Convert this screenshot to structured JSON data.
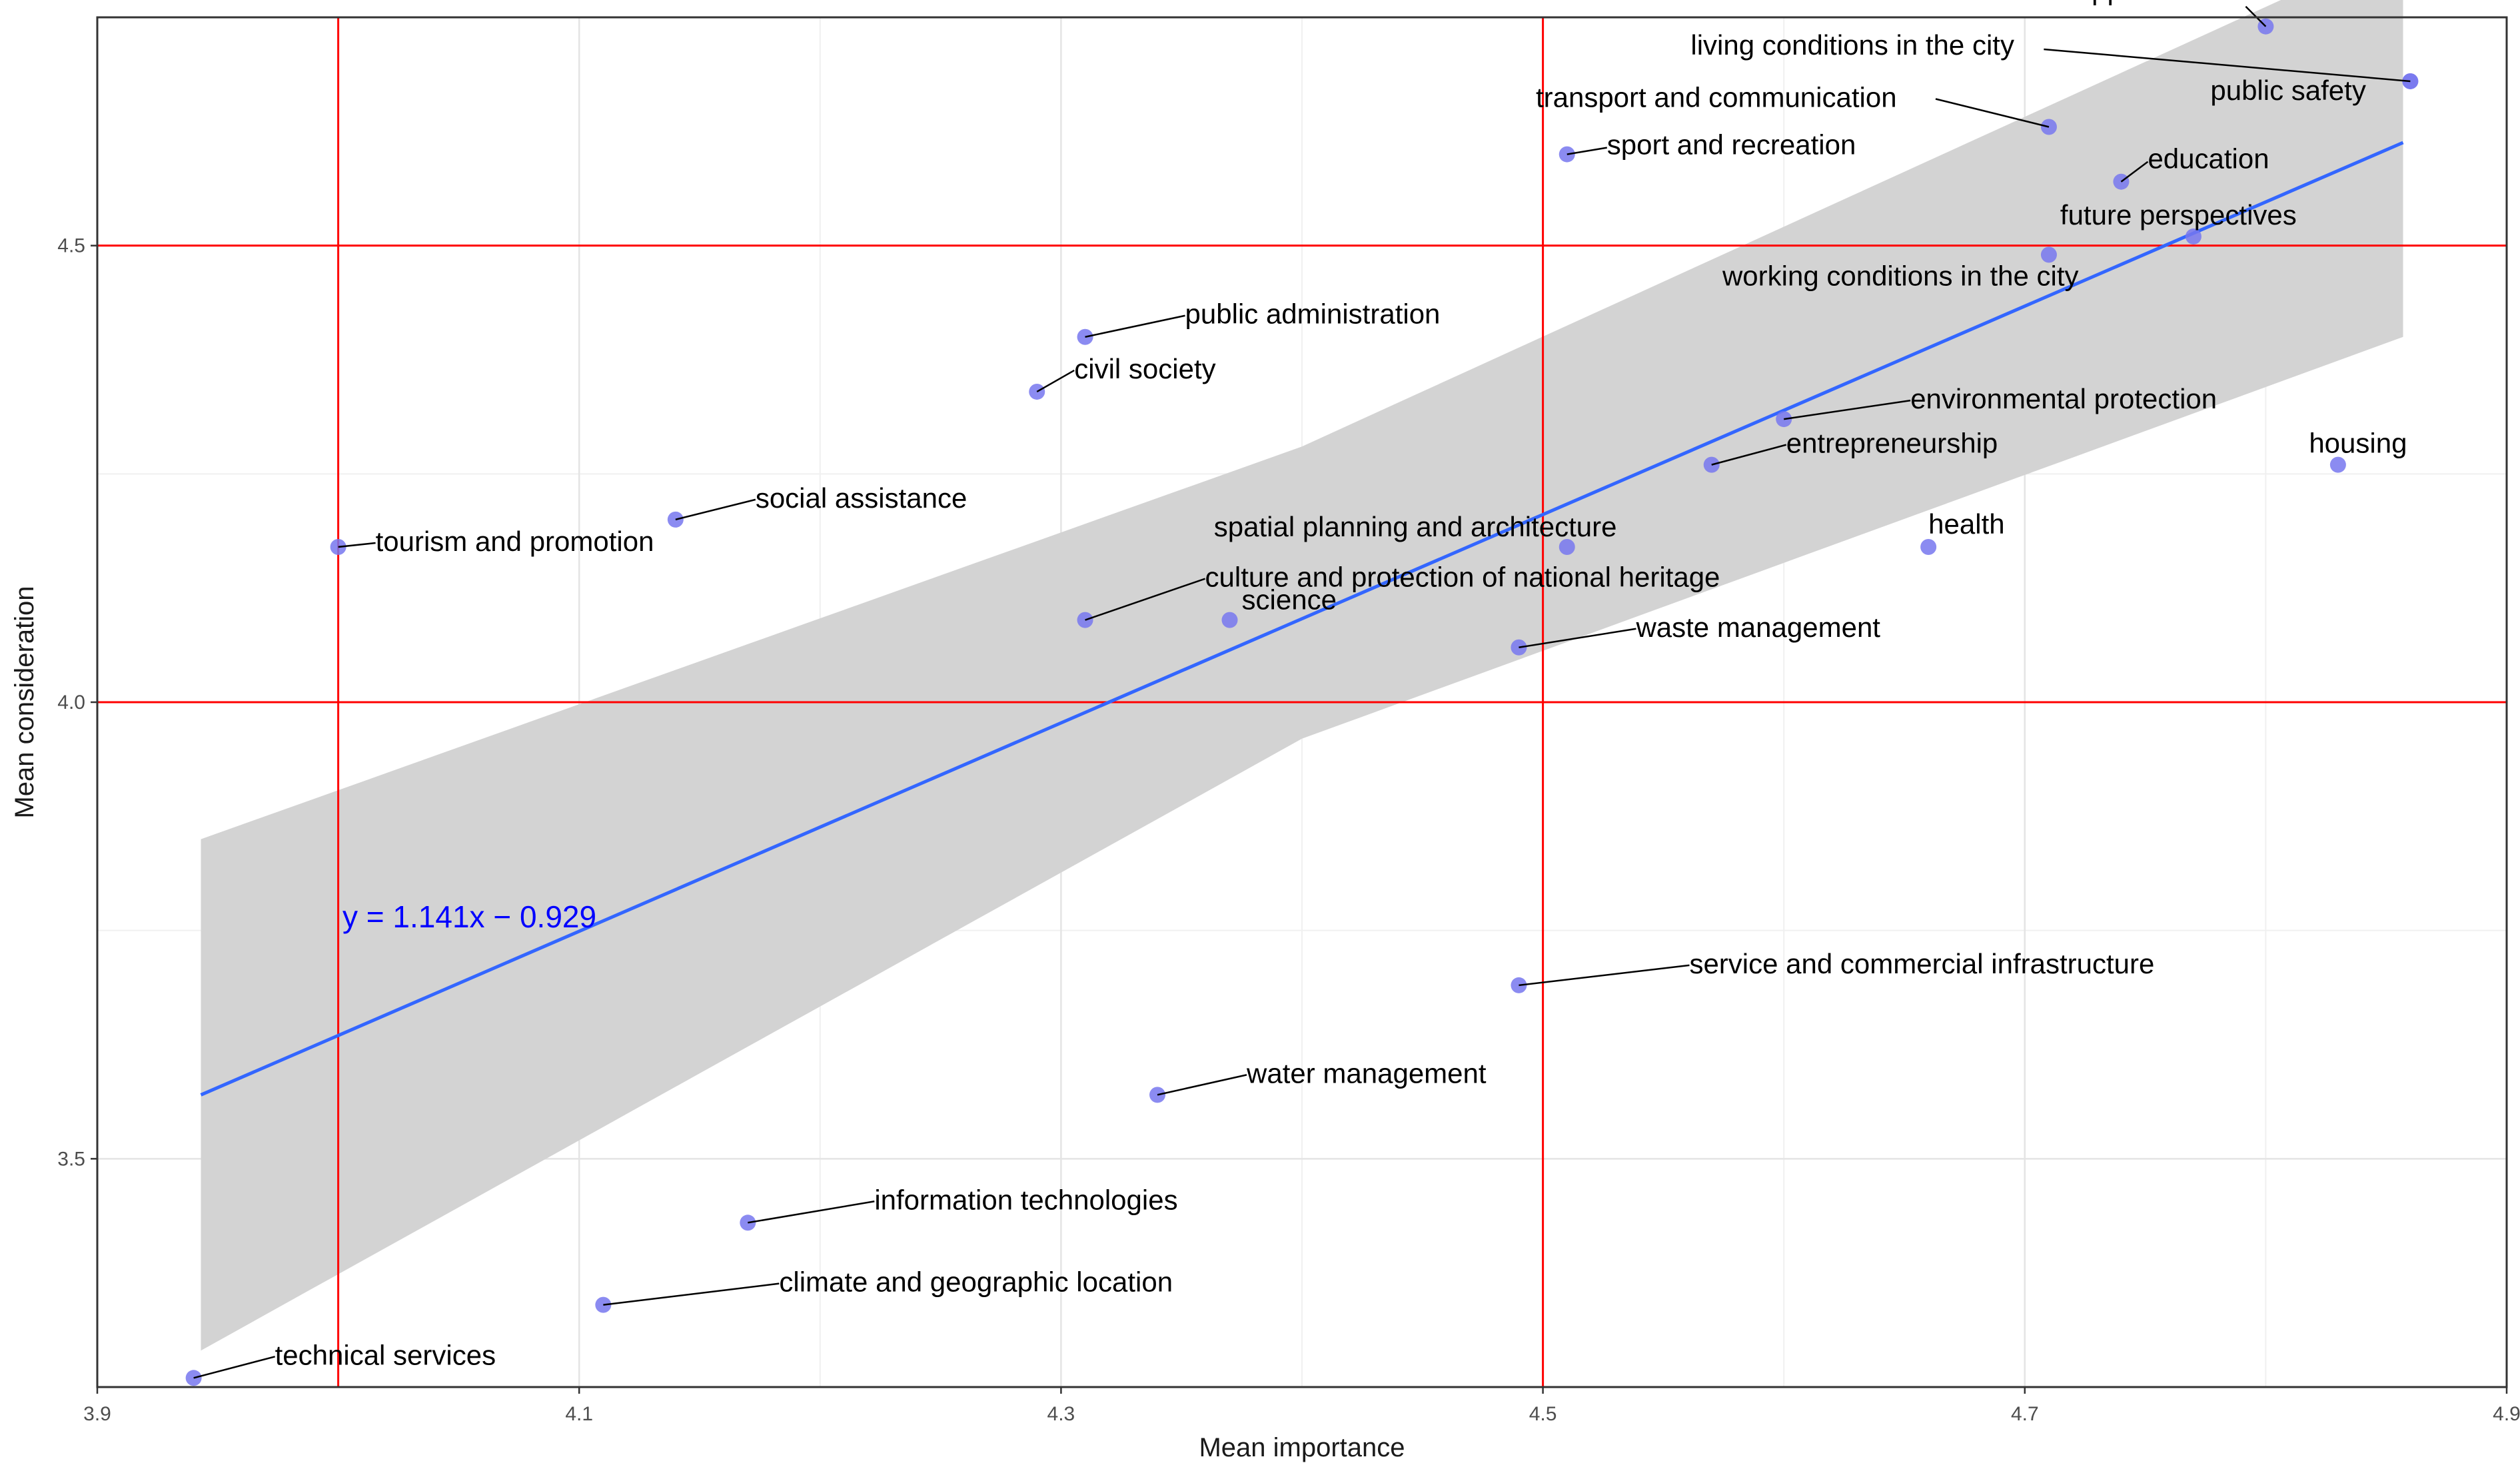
{
  "chart_data": {
    "type": "scatter",
    "xlabel": "Mean importance",
    "ylabel": "Mean consideration",
    "xlim": [
      3.9,
      4.9
    ],
    "ylim": [
      3.25,
      4.75
    ],
    "x_ticks": [
      "3.9",
      "4.1",
      "4.3",
      "4.5",
      "4.7",
      "4.9"
    ],
    "y_ticks": [
      "3.5",
      "4.0",
      "4.5"
    ],
    "grid": true,
    "reference_lines": {
      "x": [
        4.0,
        4.5
      ],
      "y": [
        4.0,
        4.5
      ],
      "color": "#ff0000"
    },
    "regression": {
      "equation": "y = 1.141x − 0.929",
      "slope": 1.141,
      "intercept": -0.929,
      "x_range": [
        3.943,
        4.857
      ],
      "confidence_band": [
        {
          "x": 3.943,
          "lower": 3.29,
          "upper": 3.85
        },
        {
          "x": 4.4,
          "lower": 3.96,
          "upper": 4.28
        },
        {
          "x": 4.857,
          "lower": 4.4,
          "upper": 4.83
        }
      ],
      "line_color": "#3366ff",
      "band_color": "#d3d3d3"
    },
    "point_color": "#7777ee",
    "points": [
      {
        "label": "leisure opportunities",
        "x": 4.8,
        "y": 4.74
      },
      {
        "label": "living conditions in the city",
        "x": 4.86,
        "y": 4.68
      },
      {
        "label": "public safety",
        "x": 4.86,
        "y": 4.68
      },
      {
        "label": "transport and communication",
        "x": 4.71,
        "y": 4.63
      },
      {
        "label": "sport and recreation",
        "x": 4.51,
        "y": 4.6
      },
      {
        "label": "education",
        "x": 4.74,
        "y": 4.57
      },
      {
        "label": "future perspectives",
        "x": 4.77,
        "y": 4.51
      },
      {
        "label": "working conditions in the city",
        "x": 4.71,
        "y": 4.49
      },
      {
        "label": "public administration",
        "x": 4.31,
        "y": 4.4
      },
      {
        "label": "civil society",
        "x": 4.29,
        "y": 4.34
      },
      {
        "label": "environmental protection",
        "x": 4.6,
        "y": 4.31
      },
      {
        "label": "entrepreneurship",
        "x": 4.57,
        "y": 4.26
      },
      {
        "label": "housing",
        "x": 4.83,
        "y": 4.26
      },
      {
        "label": "social assistance",
        "x": 4.14,
        "y": 4.2
      },
      {
        "label": "tourism and promotion",
        "x": 4.0,
        "y": 4.17
      },
      {
        "label": "spatial planning and architecture",
        "x": 4.51,
        "y": 4.17
      },
      {
        "label": "health",
        "x": 4.66,
        "y": 4.17
      },
      {
        "label": "culture and protection of national heritage",
        "x": 4.31,
        "y": 4.09
      },
      {
        "label": "science",
        "x": 4.37,
        "y": 4.09
      },
      {
        "label": "waste management",
        "x": 4.49,
        "y": 4.06
      },
      {
        "label": "service and commercial infrastructure",
        "x": 4.49,
        "y": 3.69
      },
      {
        "label": "water management",
        "x": 4.34,
        "y": 3.57
      },
      {
        "label": "information technologies",
        "x": 4.17,
        "y": 3.43
      },
      {
        "label": "climate and geographic location",
        "x": 4.11,
        "y": 3.34
      },
      {
        "label": "technical services",
        "x": 3.94,
        "y": 3.26
      }
    ]
  }
}
